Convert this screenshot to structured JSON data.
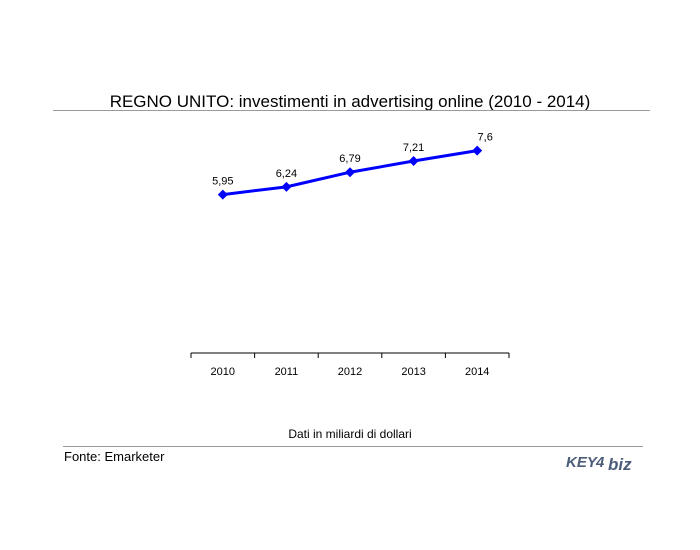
{
  "title": "REGNO UNITO: investimenti in advertising online (2010 - 2014)",
  "note": "Dati in miliardi di dollari",
  "source": "Fonte: Emarketer",
  "logo_text": "KEY4biz",
  "colors": {
    "series": "#0000ff",
    "axis": "#000000",
    "rules": "#9a9a9a",
    "logo": "#4c5d7a"
  },
  "chart_data": {
    "type": "line",
    "categories": [
      "2010",
      "2011",
      "2012",
      "2013",
      "2014"
    ],
    "series": [
      {
        "values": [
          5.95,
          6.24,
          6.79,
          7.21,
          7.6
        ],
        "labels": [
          "5,95",
          "6,24",
          "6,79",
          "7,21",
          "7,6"
        ]
      }
    ],
    "ylim": [
      0,
      8
    ],
    "grid": false,
    "legend": "none"
  }
}
